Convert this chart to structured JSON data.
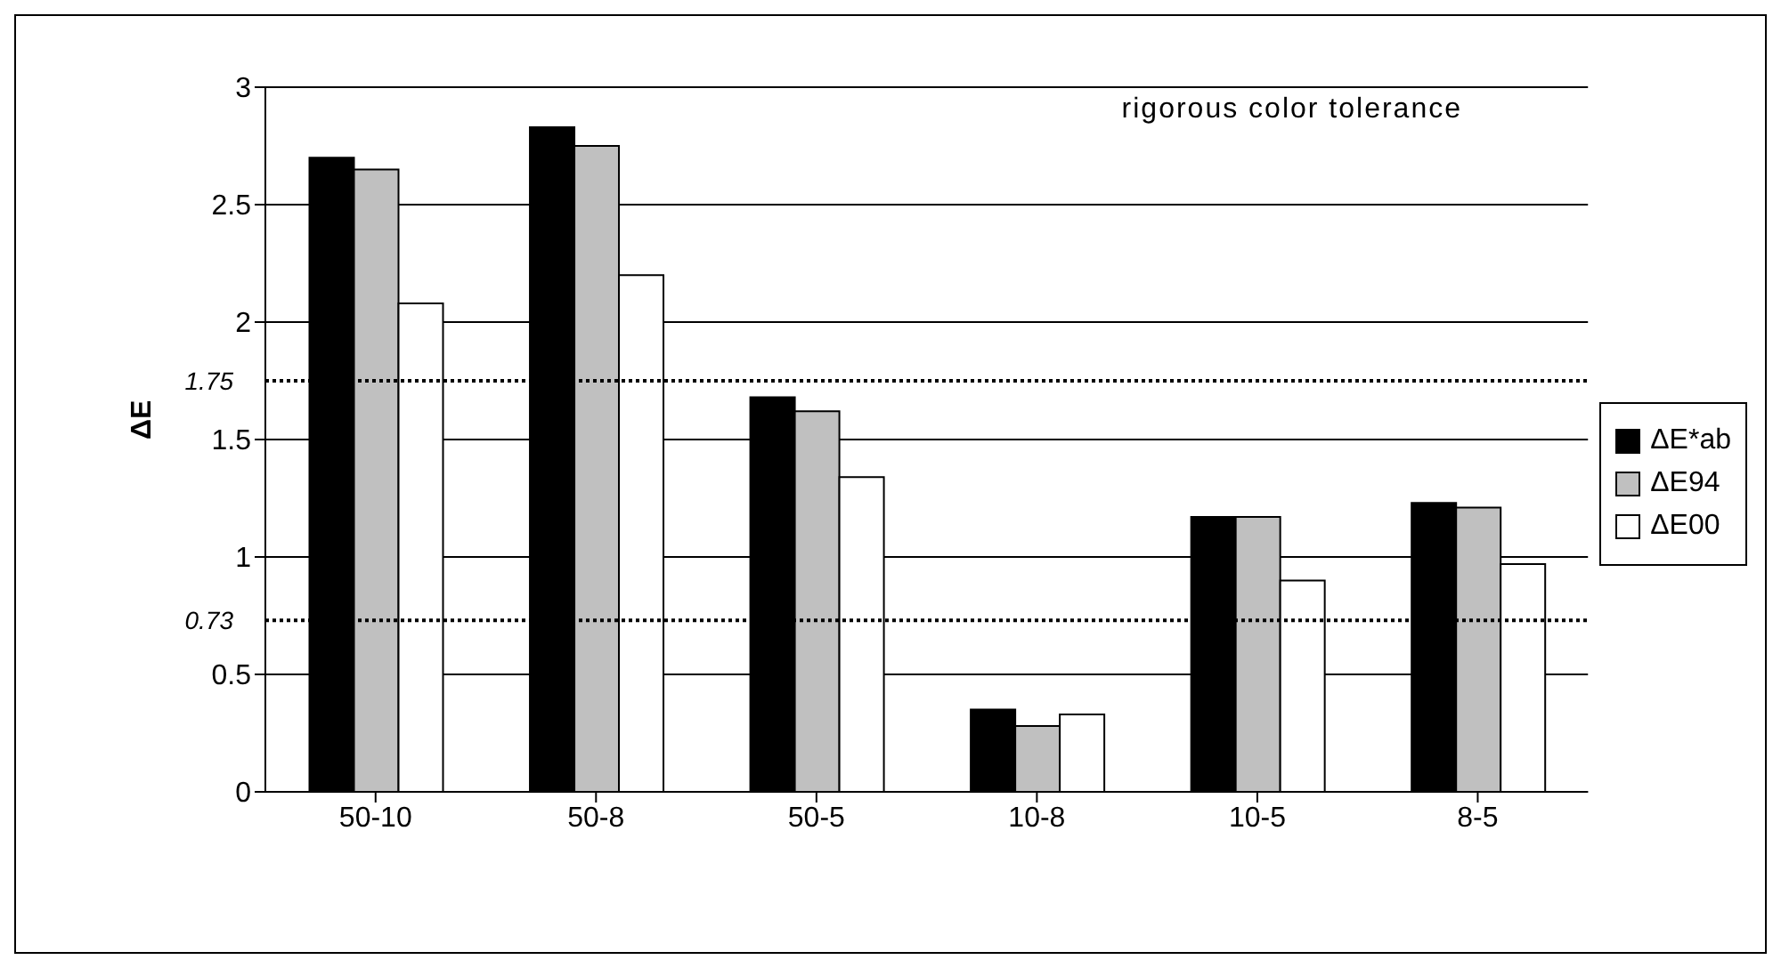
{
  "chart_data": {
    "type": "bar",
    "ylabel": "ΔE",
    "categories": [
      "50-10",
      "50-8",
      "50-5",
      "10-8",
      "10-5",
      "8-5"
    ],
    "series": [
      {
        "name": "ΔE*ab",
        "color": "#000000",
        "values": [
          2.7,
          2.83,
          1.68,
          0.35,
          1.17,
          1.23
        ]
      },
      {
        "name": "ΔE94",
        "color": "#c0c0c0",
        "values": [
          2.65,
          2.75,
          1.62,
          0.28,
          1.17,
          1.21
        ]
      },
      {
        "name": "ΔE00",
        "color": "#ffffff",
        "values": [
          2.08,
          2.2,
          1.34,
          0.33,
          0.9,
          0.97
        ]
      }
    ],
    "ylim": [
      0,
      3
    ],
    "yticks": [
      0,
      0.5,
      1,
      1.5,
      2,
      2.5,
      3
    ],
    "grid": "y",
    "legend": "right",
    "ref_lines": [
      {
        "axis": "y",
        "value": 1.75,
        "label": "1.75",
        "line_style": "dotted"
      },
      {
        "axis": "y",
        "value": 0.73,
        "label": "0.73",
        "line_style": "dotted"
      }
    ],
    "annotations": [
      "rigorous color tolerance"
    ]
  }
}
